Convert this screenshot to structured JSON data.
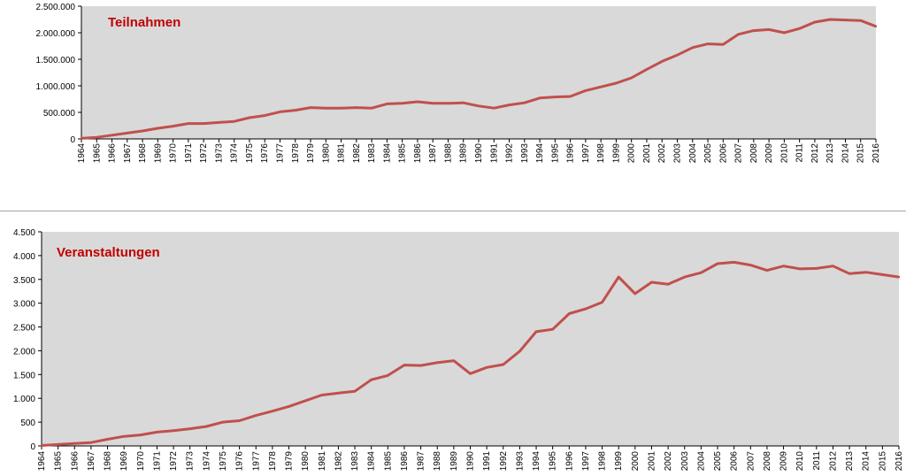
{
  "colors": {
    "plot_bg": "#d9d9d9",
    "line": "#c0504d",
    "title": "#c00000",
    "axis": "#000000"
  },
  "chart_data": [
    {
      "type": "line",
      "title": "Teilnahmen",
      "xlabel": "",
      "ylabel": "",
      "ylim": [
        0,
        2500000
      ],
      "yticks": [
        0,
        500000,
        1000000,
        1500000,
        2000000,
        2500000
      ],
      "ytick_labels": [
        "0",
        "500.000",
        "1.000.000",
        "1.500.000",
        "2.000.000",
        "2.500.000"
      ],
      "grid": false,
      "categories": [
        "1964",
        "1965",
        "1966",
        "1967",
        "1968",
        "1969",
        "1970",
        "1971",
        "1972",
        "1973",
        "1974",
        "1975",
        "1976",
        "1977",
        "1978",
        "1979",
        "1980",
        "1981",
        "1982",
        "1983",
        "1984",
        "1985",
        "1986",
        "1987",
        "1988",
        "1989",
        "1990",
        "1991",
        "1992",
        "1993",
        "1994",
        "1995",
        "1996",
        "1997",
        "1998",
        "1999",
        "2000",
        "2001",
        "2002",
        "2003",
        "2004",
        "2005",
        "2006",
        "2007",
        "2008",
        "2009",
        "2010",
        "2011",
        "2012",
        "2013",
        "2014",
        "2015",
        "2016"
      ],
      "series": [
        {
          "values": [
            10000,
            30000,
            70000,
            110000,
            150000,
            200000,
            240000,
            290000,
            290000,
            310000,
            330000,
            400000,
            440000,
            510000,
            540000,
            590000,
            580000,
            580000,
            590000,
            580000,
            660000,
            670000,
            700000,
            670000,
            670000,
            680000,
            620000,
            580000,
            640000,
            680000,
            770000,
            790000,
            800000,
            910000,
            980000,
            1050000,
            1150000,
            1310000,
            1460000,
            1580000,
            1720000,
            1790000,
            1780000,
            1970000,
            2040000,
            2060000,
            2000000,
            2080000,
            2200000,
            2250000,
            2240000,
            2230000,
            2120000
          ]
        }
      ]
    },
    {
      "type": "line",
      "title": "Veranstaltungen",
      "xlabel": "",
      "ylabel": "",
      "ylim": [
        0,
        4500
      ],
      "yticks": [
        0,
        500,
        1000,
        1500,
        2000,
        2500,
        3000,
        3500,
        4000,
        4500
      ],
      "ytick_labels": [
        "0",
        "500",
        "1.000",
        "1.500",
        "2.000",
        "2.500",
        "3.000",
        "3.500",
        "4.000",
        "4.500"
      ],
      "grid": false,
      "categories": [
        "1964",
        "1965",
        "1966",
        "1967",
        "1968",
        "1969",
        "1970",
        "1971",
        "1972",
        "1973",
        "1974",
        "1975",
        "1976",
        "1977",
        "1978",
        "1979",
        "1980",
        "1981",
        "1982",
        "1983",
        "1984",
        "1985",
        "1986",
        "1987",
        "1988",
        "1989",
        "1990",
        "1991",
        "1992",
        "1993",
        "1994",
        "1995",
        "1996",
        "1997",
        "1998",
        "1999",
        "2000",
        "2001",
        "2002",
        "2003",
        "2004",
        "2005",
        "2006",
        "2007",
        "2008",
        "2009",
        "2010",
        "2011",
        "2012",
        "2013",
        "2014",
        "2015",
        "2016"
      ],
      "series": [
        {
          "values": [
            10,
            30,
            50,
            70,
            140,
            200,
            230,
            290,
            320,
            360,
            410,
            500,
            530,
            640,
            730,
            830,
            950,
            1070,
            1110,
            1150,
            1390,
            1480,
            1700,
            1690,
            1750,
            1790,
            1520,
            1650,
            1710,
            1990,
            2400,
            2450,
            2780,
            2880,
            3020,
            3550,
            3200,
            3440,
            3400,
            3550,
            3640,
            3830,
            3860,
            3800,
            3690,
            3780,
            3720,
            3730,
            3780,
            3620,
            3650,
            3600,
            3550
          ]
        }
      ]
    }
  ]
}
